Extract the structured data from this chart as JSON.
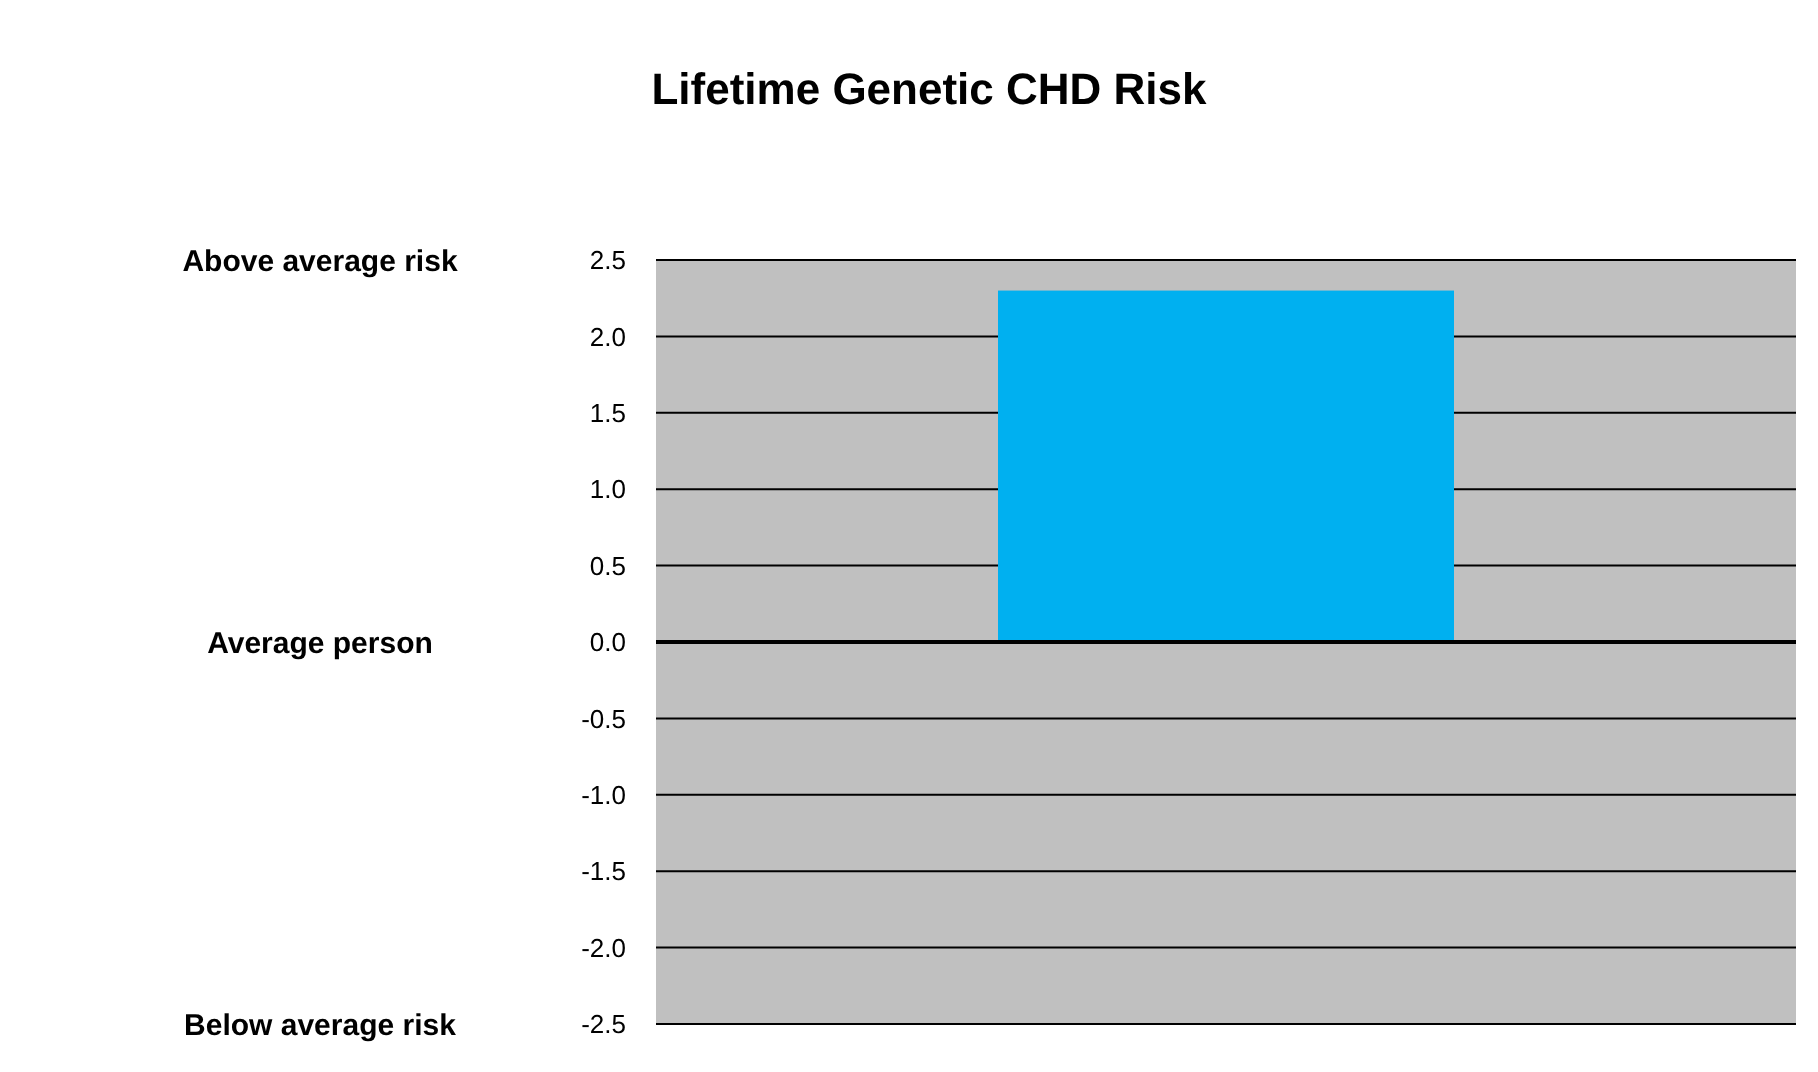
{
  "chart_data": {
    "type": "bar",
    "title": "Lifetime Genetic CHD Risk",
    "categories": [
      null
    ],
    "values": [
      2.3
    ],
    "color": "#00b0f0",
    "ylim": [
      -2.5,
      2.5
    ],
    "yticks": [
      {
        "value": 2.5,
        "label": "2.5"
      },
      {
        "value": 2,
        "label": "2.0"
      },
      {
        "value": 1.5,
        "label": "1.5"
      },
      {
        "value": 1,
        "label": "1.0"
      },
      {
        "value": 0.5,
        "label": "0.5"
      },
      {
        "value": 0,
        "label": "0.0"
      },
      {
        "value": -0.5,
        "label": "-0.5"
      },
      {
        "value": -1,
        "label": "-1.0"
      },
      {
        "value": -1.5,
        "label": "-1.5"
      },
      {
        "value": -2,
        "label": "-2.0"
      },
      {
        "value": -2.5,
        "label": "-2.5"
      }
    ],
    "grid": "y",
    "annotations": [
      "Above average risk",
      "Average person",
      "Below average risk"
    ]
  }
}
